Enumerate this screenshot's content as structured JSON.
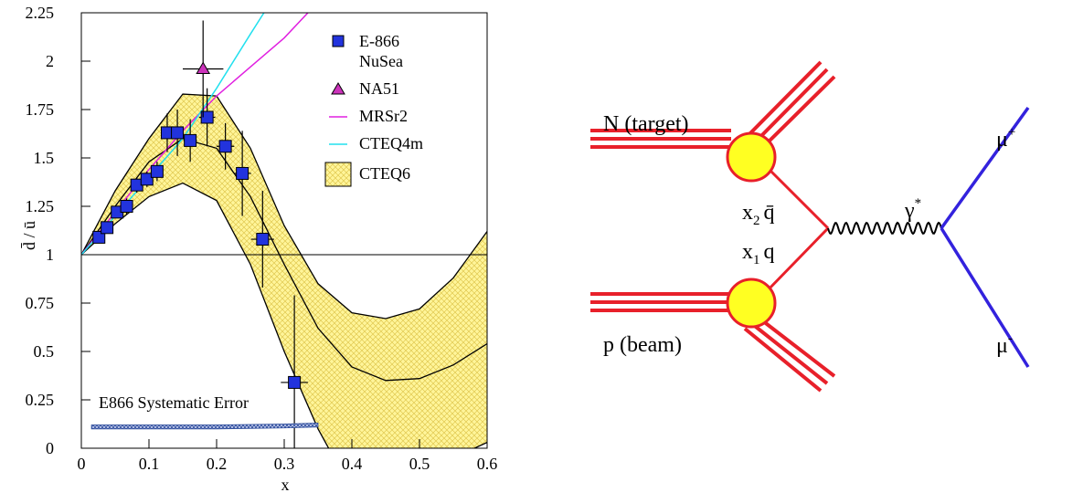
{
  "chart_data": {
    "type": "scatter",
    "xlabel": "x",
    "ylabel": "d̄ / ū",
    "xlim": [
      0,
      0.6
    ],
    "ylim": [
      0,
      2.25
    ],
    "xticks": [
      0,
      0.1,
      0.2,
      0.3,
      0.4,
      0.5,
      0.6
    ],
    "yticks": [
      0,
      0.25,
      0.5,
      0.75,
      1,
      1.25,
      1.5,
      1.75,
      2,
      2.25
    ],
    "reference_line": 1,
    "series": [
      {
        "name": "E-866 NuSea",
        "kind": "points",
        "marker": "square",
        "color": "#2233dd",
        "x": [
          0.026,
          0.038,
          0.053,
          0.067,
          0.082,
          0.097,
          0.112,
          0.127,
          0.142,
          0.161,
          0.186,
          0.213,
          0.238,
          0.268,
          0.315
        ],
        "values": [
          1.09,
          1.14,
          1.22,
          1.25,
          1.36,
          1.39,
          1.43,
          1.63,
          1.63,
          1.59,
          1.71,
          1.56,
          1.42,
          1.08,
          0.34
        ],
        "yerr": [
          0.03,
          0.03,
          0.03,
          0.04,
          0.04,
          0.04,
          0.05,
          0.1,
          0.12,
          0.11,
          0.15,
          0.12,
          0.22,
          0.25,
          0.45
        ],
        "xerr": [
          0.006,
          0.006,
          0.007,
          0.007,
          0.007,
          0.007,
          0.007,
          0.007,
          0.007,
          0.01,
          0.012,
          0.013,
          0.013,
          0.017,
          0.02
        ]
      },
      {
        "name": "NA51",
        "kind": "points",
        "marker": "triangle",
        "color": "#cc33bb",
        "x": [
          0.18
        ],
        "values": [
          1.96
        ],
        "yerr": [
          0.25
        ],
        "xerr": [
          0.03
        ]
      },
      {
        "name": "MRSr2",
        "kind": "line",
        "color": "#e020e0",
        "x": [
          0,
          0.05,
          0.1,
          0.15,
          0.2,
          0.25,
          0.3,
          0.335
        ],
        "values": [
          1,
          1.22,
          1.44,
          1.64,
          1.82,
          1.97,
          2.12,
          2.25
        ]
      },
      {
        "name": "CTEQ4m",
        "kind": "line",
        "color": "#22e0ee",
        "x": [
          0,
          0.05,
          0.1,
          0.15,
          0.2,
          0.25,
          0.27
        ],
        "values": [
          1,
          1.2,
          1.4,
          1.6,
          1.86,
          2.14,
          2.25
        ]
      },
      {
        "name": "CTEQ6",
        "kind": "band",
        "color": "#fff59a",
        "x": [
          0,
          0.05,
          0.1,
          0.15,
          0.2,
          0.25,
          0.3,
          0.35,
          0.4,
          0.45,
          0.5,
          0.55,
          0.6
        ],
        "values": [
          1,
          1.25,
          1.48,
          1.6,
          1.55,
          1.3,
          0.95,
          0.62,
          0.42,
          0.35,
          0.36,
          0.43,
          0.54
        ],
        "upper": [
          1,
          1.33,
          1.6,
          1.83,
          1.82,
          1.55,
          1.15,
          0.85,
          0.7,
          0.67,
          0.72,
          0.88,
          1.12
        ],
        "lower": [
          1,
          1.16,
          1.3,
          1.37,
          1.28,
          0.95,
          0.5,
          0.1,
          -0.22,
          -0.35,
          -0.3,
          -0.05,
          0.03
        ]
      }
    ],
    "systematic_error": {
      "label": "E866 Systematic Error",
      "color": "#2a4a9a",
      "x": [
        0.015,
        0.1,
        0.2,
        0.3,
        0.35
      ],
      "lower": [
        0.1,
        0.1,
        0.1,
        0.105,
        0.11
      ],
      "upper": [
        0.12,
        0.12,
        0.12,
        0.125,
        0.13
      ]
    }
  },
  "diagram": {
    "target": "N (target)",
    "beam": "p (beam)",
    "antiquark": {
      "text": "x",
      "sub": "2",
      "after": "q̄"
    },
    "quark": {
      "text": "x",
      "sub": "1",
      "after": "q"
    },
    "photon": {
      "text": "γ",
      "sup": "*"
    },
    "muon_plus": {
      "text": "μ",
      "sup": "+"
    },
    "muon_minus": {
      "text": "μ",
      "sup": "-"
    }
  }
}
